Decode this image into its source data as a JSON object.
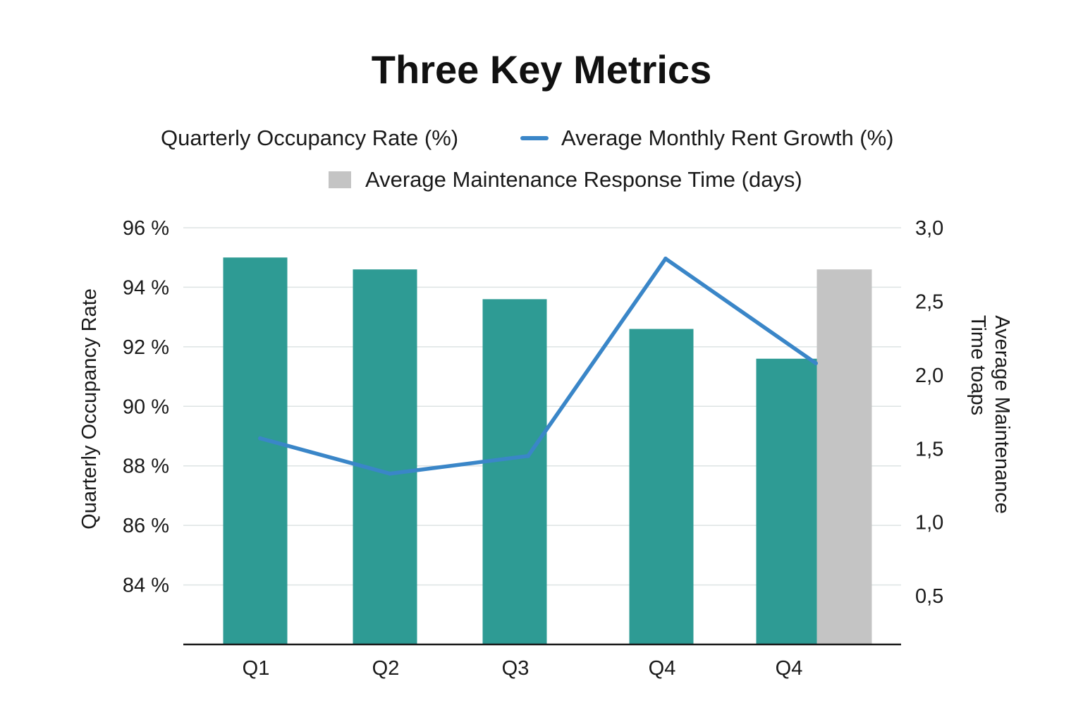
{
  "chart_data": {
    "type": "bar",
    "title": "Three Key Metrics",
    "categories": [
      "Q1",
      "Q2",
      "Q3",
      "Q4",
      "Q4"
    ],
    "legend": [
      {
        "label": "Quarterly Occupancy Rate (%)",
        "swatch": "none",
        "color": ""
      },
      {
        "label": "Average Monthly Rent Growth (%)",
        "swatch": "line",
        "color": "#3a86c8"
      },
      {
        "label": "Average Maintenance Response Time (days)",
        "swatch": "box",
        "color": "#c4c4c4"
      }
    ],
    "series": [
      {
        "name": "Quarterly Occupancy Rate (%)",
        "type": "bar",
        "axis": "left",
        "color": "#2e9b94",
        "values": [
          95.0,
          94.6,
          93.6,
          92.6,
          91.6
        ]
      },
      {
        "name": "Average Maintenance Response Time (days)",
        "type": "bar",
        "axis": "left",
        "color": "#c4c4c4",
        "values": [
          null,
          null,
          null,
          null,
          94.6
        ]
      },
      {
        "name": "Average Monthly Rent Growth (%)",
        "type": "line",
        "axis": "right",
        "color": "#3a86c8",
        "values": [
          1.57,
          1.33,
          1.45,
          2.79,
          2.08
        ]
      }
    ],
    "left_axis": {
      "label": "Quarterly Occupancy Rate",
      "ylim": [
        82,
        96
      ],
      "ticks": [
        96,
        94,
        92,
        90,
        88,
        86,
        84
      ],
      "tick_labels": [
        "96 %",
        "94 %",
        "92 %",
        "90 %",
        "88 %",
        "86 %",
        "84 %"
      ]
    },
    "right_axis": {
      "label_lines": [
        "Average Maintenance",
        "Time toaps"
      ],
      "ylim": [
        0.17,
        3.0
      ],
      "ticks": [
        3.0,
        2.5,
        2.0,
        1.5,
        1.0,
        0.5
      ],
      "tick_labels": [
        "3,0",
        "2,5",
        "2,0",
        "1,5",
        "1,0",
        "0,5"
      ]
    },
    "grid": true,
    "legend_position": "top"
  }
}
